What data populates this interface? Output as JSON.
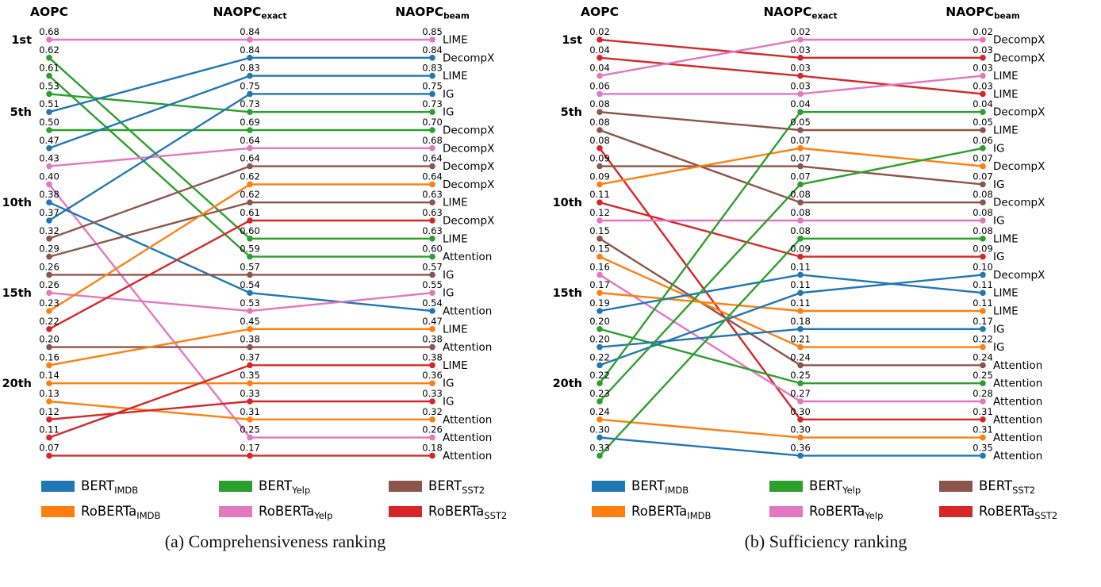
{
  "models": [
    {
      "id": "BERT_IMDB",
      "name": "BERT",
      "sub": "IMDB",
      "color": "#1f77b4"
    },
    {
      "id": "RoBERTa_IMDB",
      "name": "RoBERTa",
      "sub": "IMDB",
      "color": "#ff7f0e"
    },
    {
      "id": "BERT_Yelp",
      "name": "BERT",
      "sub": "Yelp",
      "color": "#2ca02c"
    },
    {
      "id": "RoBERTa_Yelp",
      "name": "RoBERTa",
      "sub": "Yelp",
      "color": "#e377c2"
    },
    {
      "id": "BERT_SST2",
      "name": "BERT",
      "sub": "SST2",
      "color": "#8c564b"
    },
    {
      "id": "RoBERTa_SST2",
      "name": "RoBERTa",
      "sub": "SST2",
      "color": "#d62728"
    }
  ],
  "legend_order": [
    [
      "BERT_IMDB",
      "BERT_Yelp",
      "BERT_SST2"
    ],
    [
      "RoBERTa_IMDB",
      "RoBERTa_Yelp",
      "RoBERTa_SST2"
    ]
  ],
  "chart_data": [
    {
      "type": "line",
      "subtype": "bump-ranking",
      "panel": "a",
      "caption": "(a) Comprehensiveness ranking",
      "columns": [
        {
          "main": "AOPC",
          "sub": ""
        },
        {
          "main": "NAOPC",
          "sub": "exact"
        },
        {
          "main": "NAOPC",
          "sub": "beam"
        }
      ],
      "rank_ticks": [
        {
          "rank": 1,
          "label": "1st"
        },
        {
          "rank": 5,
          "label": "5th"
        },
        {
          "rank": 10,
          "label": "10th"
        },
        {
          "rank": 15,
          "label": "15th"
        },
        {
          "rank": 20,
          "label": "20th"
        }
      ],
      "items": [
        {
          "model": "RoBERTa_Yelp",
          "method": "LIME",
          "values": [
            0.68,
            0.84,
            0.85
          ],
          "ranks": [
            1,
            1,
            1
          ]
        },
        {
          "model": "BERT_Yelp",
          "method": "LIME",
          "values": [
            0.62,
            0.6,
            0.63
          ],
          "ranks": [
            2,
            12,
            12
          ]
        },
        {
          "model": "BERT_Yelp",
          "method": "Attention",
          "values": [
            0.61,
            0.59,
            0.6
          ],
          "ranks": [
            3,
            13,
            13
          ]
        },
        {
          "model": "BERT_Yelp",
          "method": "IG",
          "values": [
            0.53,
            0.73,
            0.73
          ],
          "ranks": [
            4,
            5,
            5
          ]
        },
        {
          "model": "BERT_IMDB",
          "method": "DecompX",
          "values": [
            0.51,
            0.84,
            0.84
          ],
          "ranks": [
            5,
            2,
            2
          ]
        },
        {
          "model": "BERT_Yelp",
          "method": "DecompX",
          "values": [
            0.5,
            0.69,
            0.7
          ],
          "ranks": [
            6,
            6,
            6
          ]
        },
        {
          "model": "BERT_IMDB",
          "method": "LIME",
          "values": [
            0.47,
            0.83,
            0.83
          ],
          "ranks": [
            7,
            3,
            3
          ]
        },
        {
          "model": "RoBERTa_Yelp",
          "method": "DecompX",
          "values": [
            0.43,
            0.64,
            0.68
          ],
          "ranks": [
            8,
            7,
            7
          ]
        },
        {
          "model": "RoBERTa_Yelp",
          "method": "Attention",
          "values": [
            0.4,
            0.25,
            0.26
          ],
          "ranks": [
            9,
            23,
            23
          ]
        },
        {
          "model": "BERT_IMDB",
          "method": "Attention",
          "values": [
            0.38,
            0.54,
            0.54
          ],
          "ranks": [
            10,
            15,
            16
          ]
        },
        {
          "model": "BERT_IMDB",
          "method": "IG",
          "values": [
            0.37,
            0.75,
            0.75
          ],
          "ranks": [
            11,
            4,
            4
          ]
        },
        {
          "model": "BERT_SST2",
          "method": "DecompX",
          "values": [
            0.32,
            0.64,
            0.64
          ],
          "ranks": [
            12,
            8,
            8
          ]
        },
        {
          "model": "BERT_SST2",
          "method": "LIME",
          "values": [
            0.29,
            0.62,
            0.63
          ],
          "ranks": [
            13,
            10,
            10
          ]
        },
        {
          "model": "BERT_SST2",
          "method": "IG",
          "values": [
            0.26,
            0.57,
            0.57
          ],
          "ranks": [
            14,
            14,
            14
          ]
        },
        {
          "model": "RoBERTa_Yelp",
          "method": "IG",
          "values": [
            0.26,
            0.53,
            0.55
          ],
          "ranks": [
            15,
            16,
            15
          ]
        },
        {
          "model": "RoBERTa_IMDB",
          "method": "DecompX",
          "values": [
            0.23,
            0.62,
            0.64
          ],
          "ranks": [
            16,
            9,
            9
          ]
        },
        {
          "model": "RoBERTa_SST2",
          "method": "DecompX",
          "values": [
            0.22,
            0.61,
            0.63
          ],
          "ranks": [
            17,
            11,
            11
          ]
        },
        {
          "model": "BERT_SST2",
          "method": "Attention",
          "values": [
            0.2,
            0.38,
            0.38
          ],
          "ranks": [
            18,
            18,
            18
          ]
        },
        {
          "model": "RoBERTa_IMDB",
          "method": "LIME",
          "values": [
            0.16,
            0.45,
            0.47
          ],
          "ranks": [
            19,
            17,
            17
          ]
        },
        {
          "model": "RoBERTa_IMDB",
          "method": "IG",
          "values": [
            0.14,
            0.35,
            0.36
          ],
          "ranks": [
            20,
            20,
            20
          ]
        },
        {
          "model": "RoBERTa_IMDB",
          "method": "Attention",
          "values": [
            0.13,
            0.31,
            0.32
          ],
          "ranks": [
            21,
            22,
            22
          ]
        },
        {
          "model": "RoBERTa_SST2",
          "method": "IG",
          "values": [
            0.12,
            0.33,
            0.33
          ],
          "ranks": [
            22,
            21,
            21
          ]
        },
        {
          "model": "RoBERTa_SST2",
          "method": "LIME",
          "values": [
            0.11,
            0.37,
            0.38
          ],
          "ranks": [
            23,
            19,
            19
          ]
        },
        {
          "model": "RoBERTa_SST2",
          "method": "Attention",
          "values": [
            0.07,
            0.17,
            0.18
          ],
          "ranks": [
            24,
            24,
            24
          ]
        }
      ]
    },
    {
      "type": "line",
      "subtype": "bump-ranking",
      "panel": "b",
      "caption": "(b) Sufficiency ranking",
      "columns": [
        {
          "main": "AOPC",
          "sub": ""
        },
        {
          "main": "NAOPC",
          "sub": "exact"
        },
        {
          "main": "NAOPC",
          "sub": "beam"
        }
      ],
      "rank_ticks": [
        {
          "rank": 1,
          "label": "1st"
        },
        {
          "rank": 5,
          "label": "5th"
        },
        {
          "rank": 10,
          "label": "10th"
        },
        {
          "rank": 15,
          "label": "15th"
        },
        {
          "rank": 20,
          "label": "20th"
        }
      ],
      "items": [
        {
          "model": "RoBERTa_SST2",
          "method": "DecompX",
          "values": [
            0.02,
            0.03,
            0.03
          ],
          "ranks": [
            1,
            2,
            2
          ]
        },
        {
          "model": "RoBERTa_SST2",
          "method": "LIME",
          "values": [
            0.04,
            0.03,
            0.03
          ],
          "ranks": [
            2,
            3,
            4
          ]
        },
        {
          "model": "RoBERTa_Yelp",
          "method": "DecompX",
          "values": [
            0.04,
            0.02,
            0.02
          ],
          "ranks": [
            3,
            1,
            1
          ]
        },
        {
          "model": "RoBERTa_Yelp",
          "method": "LIME",
          "values": [
            0.06,
            0.03,
            0.03
          ],
          "ranks": [
            4,
            4,
            3
          ]
        },
        {
          "model": "BERT_SST2",
          "method": "LIME",
          "values": [
            0.08,
            0.05,
            0.05
          ],
          "ranks": [
            5,
            6,
            6
          ]
        },
        {
          "model": "BERT_SST2",
          "method": "DecompX",
          "values": [
            0.08,
            0.08,
            0.08
          ],
          "ranks": [
            6,
            10,
            10
          ]
        },
        {
          "model": "RoBERTa_SST2",
          "method": "Attention",
          "values": [
            0.08,
            0.3,
            0.31
          ],
          "ranks": [
            7,
            22,
            22
          ]
        },
        {
          "model": "BERT_SST2",
          "method": "IG",
          "values": [
            0.09,
            0.07,
            0.07
          ],
          "ranks": [
            8,
            8,
            9
          ]
        },
        {
          "model": "RoBERTa_IMDB",
          "method": "DecompX",
          "values": [
            0.09,
            0.07,
            0.07
          ],
          "ranks": [
            9,
            7,
            8
          ]
        },
        {
          "model": "RoBERTa_SST2",
          "method": "IG",
          "values": [
            0.11,
            0.09,
            0.09
          ],
          "ranks": [
            10,
            13,
            13
          ]
        },
        {
          "model": "RoBERTa_Yelp",
          "method": "IG",
          "values": [
            0.12,
            0.08,
            0.08
          ],
          "ranks": [
            11,
            11,
            11
          ]
        },
        {
          "model": "BERT_SST2",
          "method": "Attention",
          "values": [
            0.15,
            0.24,
            0.24
          ],
          "ranks": [
            12,
            19,
            19
          ]
        },
        {
          "model": "RoBERTa_IMDB",
          "method": "IG",
          "values": [
            0.15,
            0.21,
            0.22
          ],
          "ranks": [
            13,
            18,
            18
          ]
        },
        {
          "model": "RoBERTa_Yelp",
          "method": "Attention",
          "values": [
            0.16,
            0.27,
            0.28
          ],
          "ranks": [
            14,
            21,
            21
          ]
        },
        {
          "model": "RoBERTa_IMDB",
          "method": "LIME",
          "values": [
            0.17,
            0.11,
            0.11
          ],
          "ranks": [
            15,
            16,
            16
          ]
        },
        {
          "model": "BERT_IMDB",
          "method": "LIME",
          "values": [
            0.19,
            0.11,
            0.11
          ],
          "ranks": [
            16,
            14,
            15
          ]
        },
        {
          "model": "BERT_Yelp",
          "method": "Attention",
          "values": [
            0.2,
            0.25,
            0.25
          ],
          "ranks": [
            17,
            20,
            20
          ]
        },
        {
          "model": "BERT_IMDB",
          "method": "IG",
          "values": [
            0.2,
            0.18,
            0.17
          ],
          "ranks": [
            18,
            17,
            17
          ]
        },
        {
          "model": "BERT_IMDB",
          "method": "DecompX",
          "values": [
            0.22,
            0.11,
            0.1
          ],
          "ranks": [
            19,
            15,
            14
          ]
        },
        {
          "model": "BERT_Yelp",
          "method": "DecompX",
          "values": [
            0.22,
            0.04,
            0.04
          ],
          "ranks": [
            20,
            5,
            5
          ]
        },
        {
          "model": "BERT_Yelp",
          "method": "IG",
          "values": [
            0.23,
            0.07,
            0.06
          ],
          "ranks": [
            21,
            9,
            7
          ]
        },
        {
          "model": "RoBERTa_IMDB",
          "method": "Attention",
          "values": [
            0.24,
            0.3,
            0.31
          ],
          "ranks": [
            22,
            23,
            23
          ]
        },
        {
          "model": "BERT_IMDB",
          "method": "Attention",
          "values": [
            0.3,
            0.36,
            0.35
          ],
          "ranks": [
            23,
            24,
            24
          ]
        },
        {
          "model": "BERT_Yelp",
          "method": "LIME",
          "values": [
            0.33,
            0.08,
            0.08
          ],
          "ranks": [
            24,
            12,
            12
          ]
        }
      ]
    }
  ]
}
